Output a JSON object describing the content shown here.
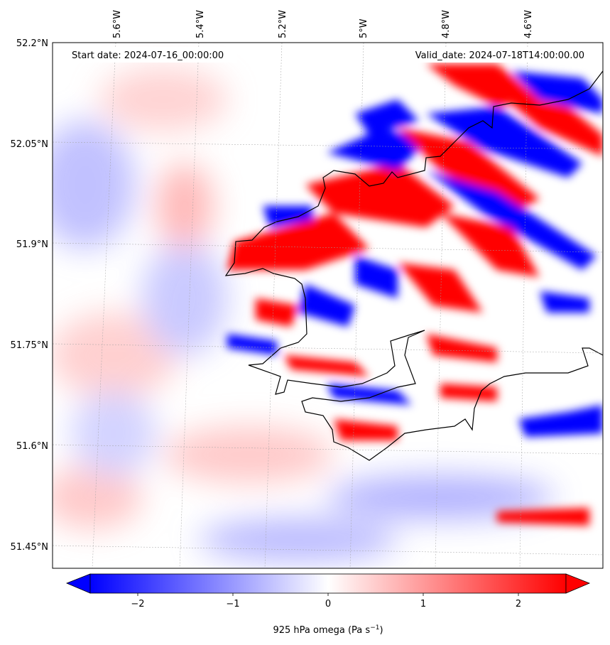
{
  "map": {
    "start_date": "Start date: 2024-07-16_00:00:00",
    "valid_date": "Valid_date: 2024-07-18T14:00:00.00",
    "lon_labels": [
      "5.6°W",
      "5.4°W",
      "5.2°W",
      "5°W",
      "4.8°W",
      "4.6°W"
    ],
    "lat_labels": [
      "52.2°N",
      "52.05°N",
      "51.9°N",
      "51.75°N",
      "51.6°N",
      "51.45°N"
    ],
    "colormap": {
      "negative": "#0000ff",
      "zero": "#ffffff",
      "positive": "#ff0000",
      "coastline": "#000000"
    }
  },
  "colorbar": {
    "label": "925 hPa omega",
    "unit": "Pa s",
    "unit_exp": "−1",
    "range": [
      -2.5,
      2.5
    ],
    "ticks": [
      "−2",
      "−1",
      "0",
      "1",
      "2"
    ],
    "tick_values": [
      -2,
      -1,
      0,
      1,
      2
    ],
    "extend": "both"
  }
}
